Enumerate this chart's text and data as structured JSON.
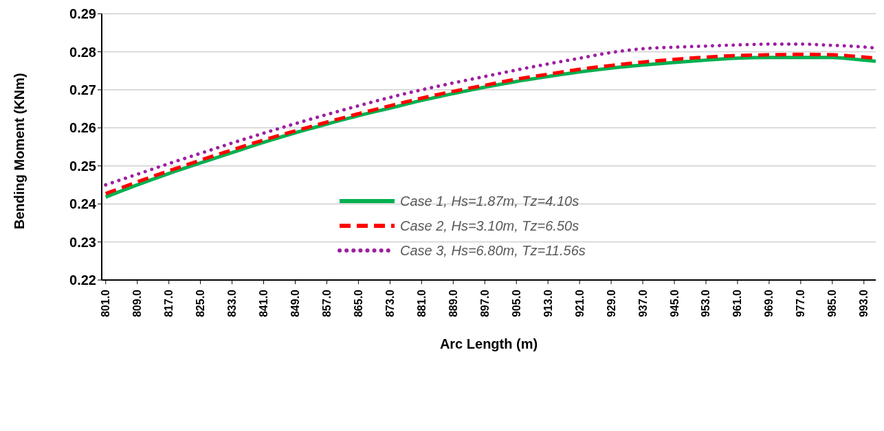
{
  "chart_data": {
    "type": "line",
    "xlabel": "Arc Length (m)",
    "ylabel": "Bending Moment (KNm)",
    "x": [
      801,
      809,
      817,
      825,
      833,
      841,
      849,
      857,
      865,
      873,
      881,
      889,
      897,
      905,
      913,
      921,
      929,
      937,
      945,
      953,
      961,
      969,
      977,
      985,
      991,
      996
    ],
    "series": [
      {
        "name": "Case 1, Hs=1.87m, Tz=4.10s",
        "color": "#00b050",
        "line_style": "solid",
        "values": [
          0.2418,
          0.245,
          0.248,
          0.2508,
          0.2535,
          0.2562,
          0.2587,
          0.261,
          0.2632,
          0.2652,
          0.2672,
          0.269,
          0.2707,
          0.2722,
          0.2735,
          0.2747,
          0.2757,
          0.2765,
          0.2772,
          0.2778,
          0.2783,
          0.2785,
          0.2785,
          0.2785,
          0.278,
          0.2775
        ]
      },
      {
        "name": "Case 2, Hs=3.10m, Tz=6.50s",
        "color": "#ff0000",
        "line_style": "dashed",
        "values": [
          0.2427,
          0.2458,
          0.2487,
          0.2515,
          0.2542,
          0.2568,
          0.2592,
          0.2615,
          0.2637,
          0.2658,
          0.2678,
          0.2696,
          0.2712,
          0.2728,
          0.2741,
          0.2754,
          0.2764,
          0.2773,
          0.278,
          0.2786,
          0.279,
          0.2792,
          0.2793,
          0.2792,
          0.2788,
          0.2783
        ]
      },
      {
        "name": "Case 3, Hs=6.80m, Tz=11.56s",
        "color": "#9e1fa0",
        "line_style": "dotted",
        "values": [
          0.245,
          0.2478,
          0.2506,
          0.2533,
          0.256,
          0.2586,
          0.2611,
          0.2635,
          0.2658,
          0.268,
          0.27,
          0.2718,
          0.2735,
          0.2752,
          0.2768,
          0.2783,
          0.2798,
          0.2808,
          0.2812,
          0.2815,
          0.2818,
          0.282,
          0.282,
          0.2817,
          0.2814,
          0.281
        ]
      }
    ],
    "xlim": [
      800,
      996
    ],
    "xticks": [
      {
        "value": 801,
        "label": "801.0"
      },
      {
        "value": 809,
        "label": "809.0"
      },
      {
        "value": 817,
        "label": "817.0"
      },
      {
        "value": 825,
        "label": "825.0"
      },
      {
        "value": 833,
        "label": "833.0"
      },
      {
        "value": 841,
        "label": "841.0"
      },
      {
        "value": 849,
        "label": "849.0"
      },
      {
        "value": 857,
        "label": "857.0"
      },
      {
        "value": 865,
        "label": "865.0"
      },
      {
        "value": 873,
        "label": "873.0"
      },
      {
        "value": 881,
        "label": "881.0"
      },
      {
        "value": 889,
        "label": "889.0"
      },
      {
        "value": 897,
        "label": "897.0"
      },
      {
        "value": 905,
        "label": "905.0"
      },
      {
        "value": 913,
        "label": "913.0"
      },
      {
        "value": 921,
        "label": "921.0"
      },
      {
        "value": 929,
        "label": "929.0"
      },
      {
        "value": 937,
        "label": "937.0"
      },
      {
        "value": 945,
        "label": "945.0"
      },
      {
        "value": 953,
        "label": "953.0"
      },
      {
        "value": 961,
        "label": "961.0"
      },
      {
        "value": 969,
        "label": "969.0"
      },
      {
        "value": 977,
        "label": "977.0"
      },
      {
        "value": 985,
        "label": "985.0"
      },
      {
        "value": 993,
        "label": "993.0"
      }
    ],
    "ylim": [
      0.22,
      0.29
    ],
    "yticks": [
      0.22,
      0.23,
      0.24,
      0.25,
      0.26,
      0.27,
      0.28,
      0.29
    ],
    "grid": "y",
    "legend": "center",
    "marker": "none"
  }
}
